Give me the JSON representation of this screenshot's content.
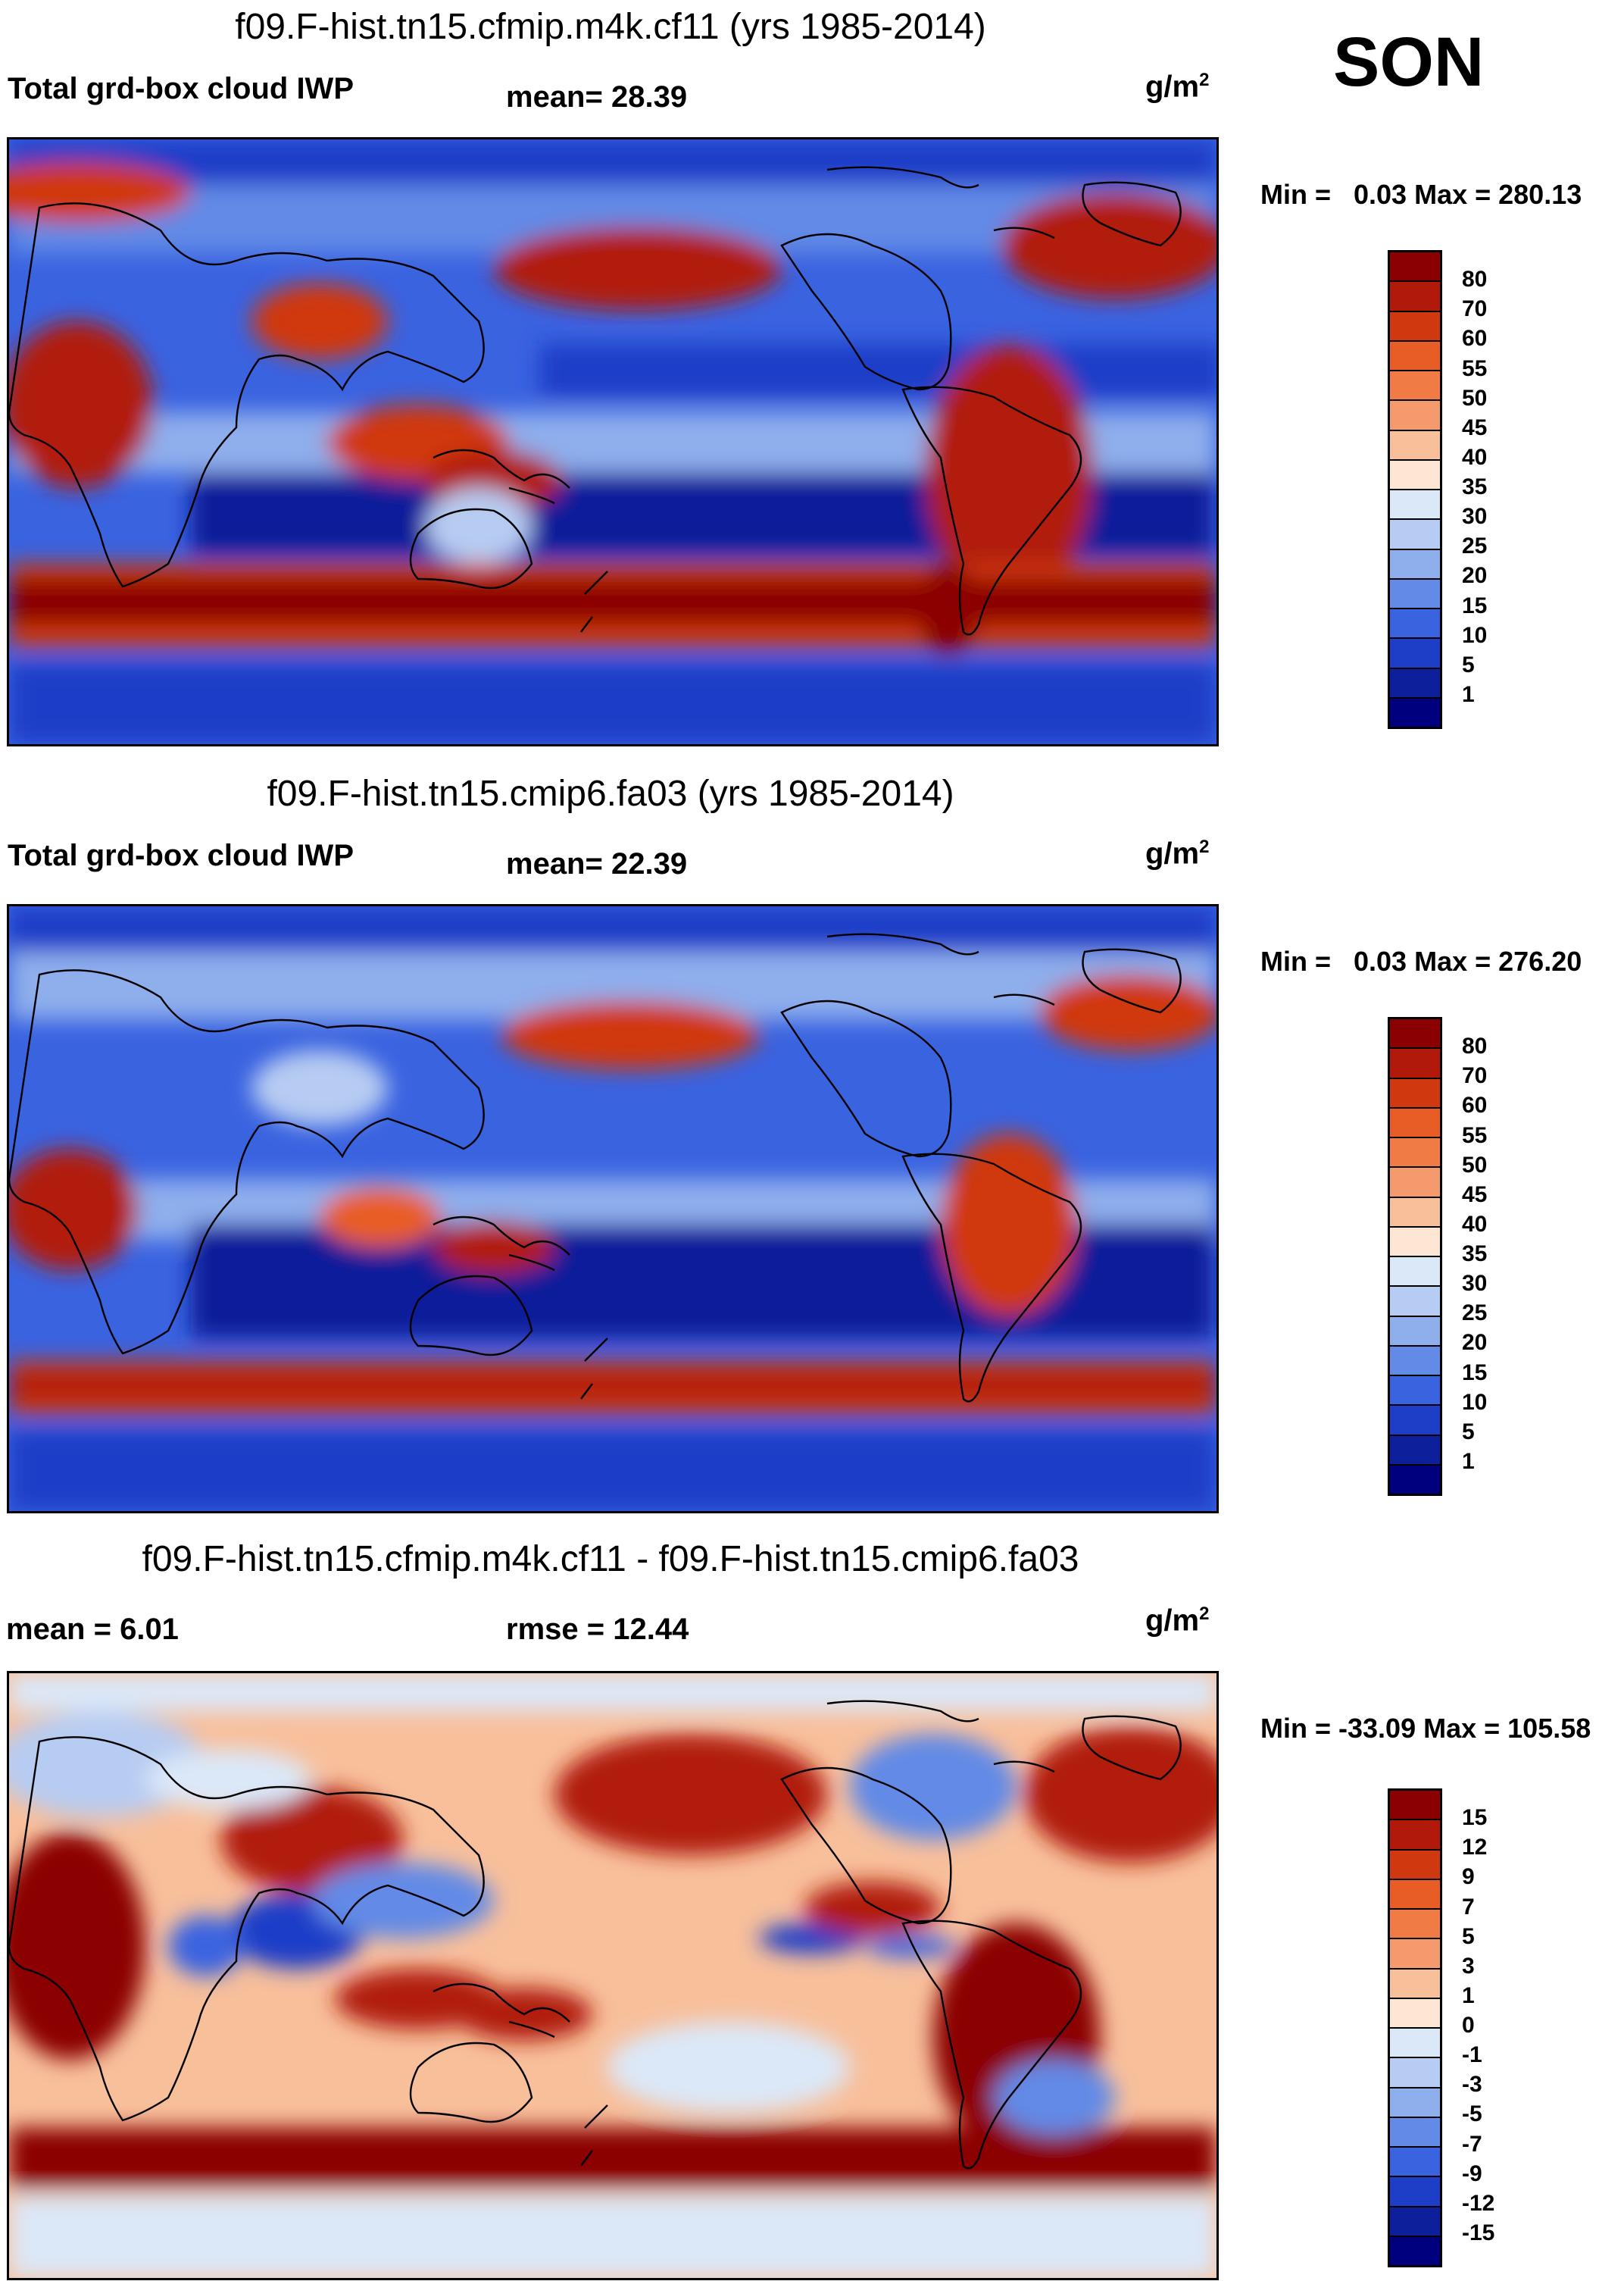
{
  "season": "SON",
  "panels": [
    {
      "title": "f09.F-hist.tn15.cfmip.m4k.cf11 (yrs 1985-2014)",
      "left_label": "Total grd-box cloud IWP",
      "mid_label": "mean=  28.39",
      "units": "g/m",
      "units_exp": "2",
      "minmax": "Min =   0.03 Max = 280.13",
      "levels": [
        "80",
        "70",
        "60",
        "55",
        "50",
        "45",
        "40",
        "35",
        "30",
        "25",
        "20",
        "15",
        "10",
        "5",
        "1"
      ],
      "colors": [
        "#8b0000",
        "#b11a0b",
        "#d0380f",
        "#e85d26",
        "#f07b45",
        "#f49a6c",
        "#f8bf9b",
        "#fde7d4",
        "#dbe8f8",
        "#b7ccf2",
        "#8eaeec",
        "#628ae6",
        "#3a63e0",
        "#1e3ec8",
        "#0d1f9a",
        "#00007f"
      ]
    },
    {
      "title": "f09.F-hist.tn15.cmip6.fa03 (yrs 1985-2014)",
      "left_label": "Total grd-box cloud IWP",
      "mid_label": "mean=  22.39",
      "units": "g/m",
      "units_exp": "2",
      "minmax": "Min =   0.03 Max = 276.20",
      "levels": [
        "80",
        "70",
        "60",
        "55",
        "50",
        "45",
        "40",
        "35",
        "30",
        "25",
        "20",
        "15",
        "10",
        "5",
        "1"
      ],
      "colors": [
        "#8b0000",
        "#b11a0b",
        "#d0380f",
        "#e85d26",
        "#f07b45",
        "#f49a6c",
        "#f8bf9b",
        "#fde7d4",
        "#dbe8f8",
        "#b7ccf2",
        "#8eaeec",
        "#628ae6",
        "#3a63e0",
        "#1e3ec8",
        "#0d1f9a",
        "#00007f"
      ]
    },
    {
      "title": "f09.F-hist.tn15.cfmip.m4k.cf11 - f09.F-hist.tn15.cmip6.fa03",
      "left_label": "mean =   6.01",
      "mid_label": "rmse =  12.44",
      "units": "g/m",
      "units_exp": "2",
      "minmax": "Min = -33.09 Max = 105.58",
      "levels": [
        "15",
        "12",
        "9",
        "7",
        "5",
        "3",
        "1",
        "0",
        "-1",
        "-3",
        "-5",
        "-7",
        "-9",
        "-12",
        "-15"
      ],
      "colors": [
        "#8b0000",
        "#b11a0b",
        "#d0380f",
        "#e85d26",
        "#f07b45",
        "#f49a6c",
        "#f8bf9b",
        "#fde7d4",
        "#dbe8f8",
        "#b7ccf2",
        "#8eaeec",
        "#628ae6",
        "#3a63e0",
        "#1e3ec8",
        "#0d1f9a",
        "#00007f"
      ]
    }
  ]
}
